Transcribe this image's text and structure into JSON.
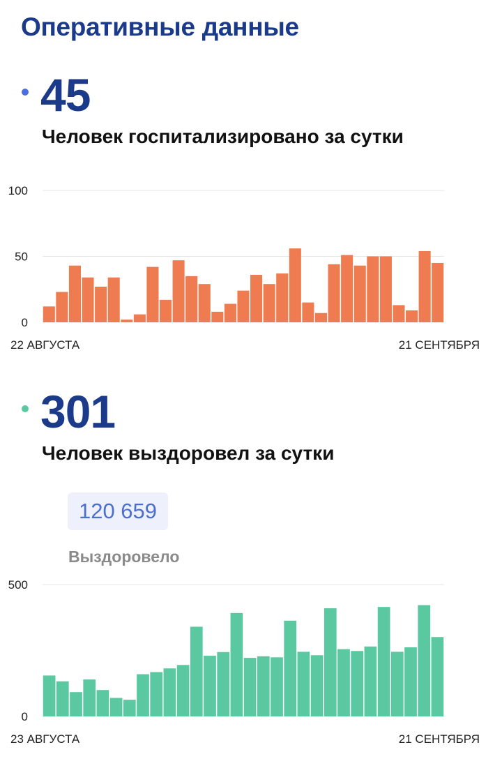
{
  "page": {
    "title": "Оперативные данные"
  },
  "colors": {
    "hospitalized": "#ef7b50",
    "recovered": "#5ac9a1",
    "accent_blue": "#4a6fe0",
    "accent_green": "#5ac9a1",
    "heading": "#1b3a8a"
  },
  "hospitalized": {
    "value": "45",
    "caption": "Человек госпитализировано за сутки"
  },
  "recovered": {
    "value": "301",
    "caption": "Человек выздоровел за сутки",
    "total_value": "120 659",
    "total_label": "Выздоровело"
  },
  "chart_data": [
    {
      "type": "bar",
      "x_start_label": "22 АВГУСТА",
      "x_end_label": "21 СЕНТЯБРЯ",
      "yticks": [
        "100",
        "50",
        "0"
      ],
      "ylim": [
        0,
        100
      ],
      "grid": true,
      "values": [
        12,
        23,
        43,
        34,
        27,
        34,
        2,
        6,
        42,
        17,
        47,
        35,
        29,
        8,
        14,
        24,
        36,
        29,
        37,
        56,
        15,
        7,
        44,
        51,
        43,
        50,
        50,
        13,
        9,
        54,
        45
      ]
    },
    {
      "type": "bar",
      "x_start_label": "23 АВГУСТА",
      "x_end_label": "21 СЕНТЯБРЯ",
      "yticks": [
        "500",
        "0"
      ],
      "ylim": [
        0,
        500
      ],
      "grid": true,
      "values": [
        155,
        133,
        92,
        140,
        100,
        70,
        63,
        160,
        168,
        182,
        195,
        340,
        230,
        244,
        392,
        222,
        228,
        224,
        363,
        245,
        232,
        410,
        255,
        248,
        265,
        415,
        245,
        262,
        422,
        301
      ]
    }
  ]
}
